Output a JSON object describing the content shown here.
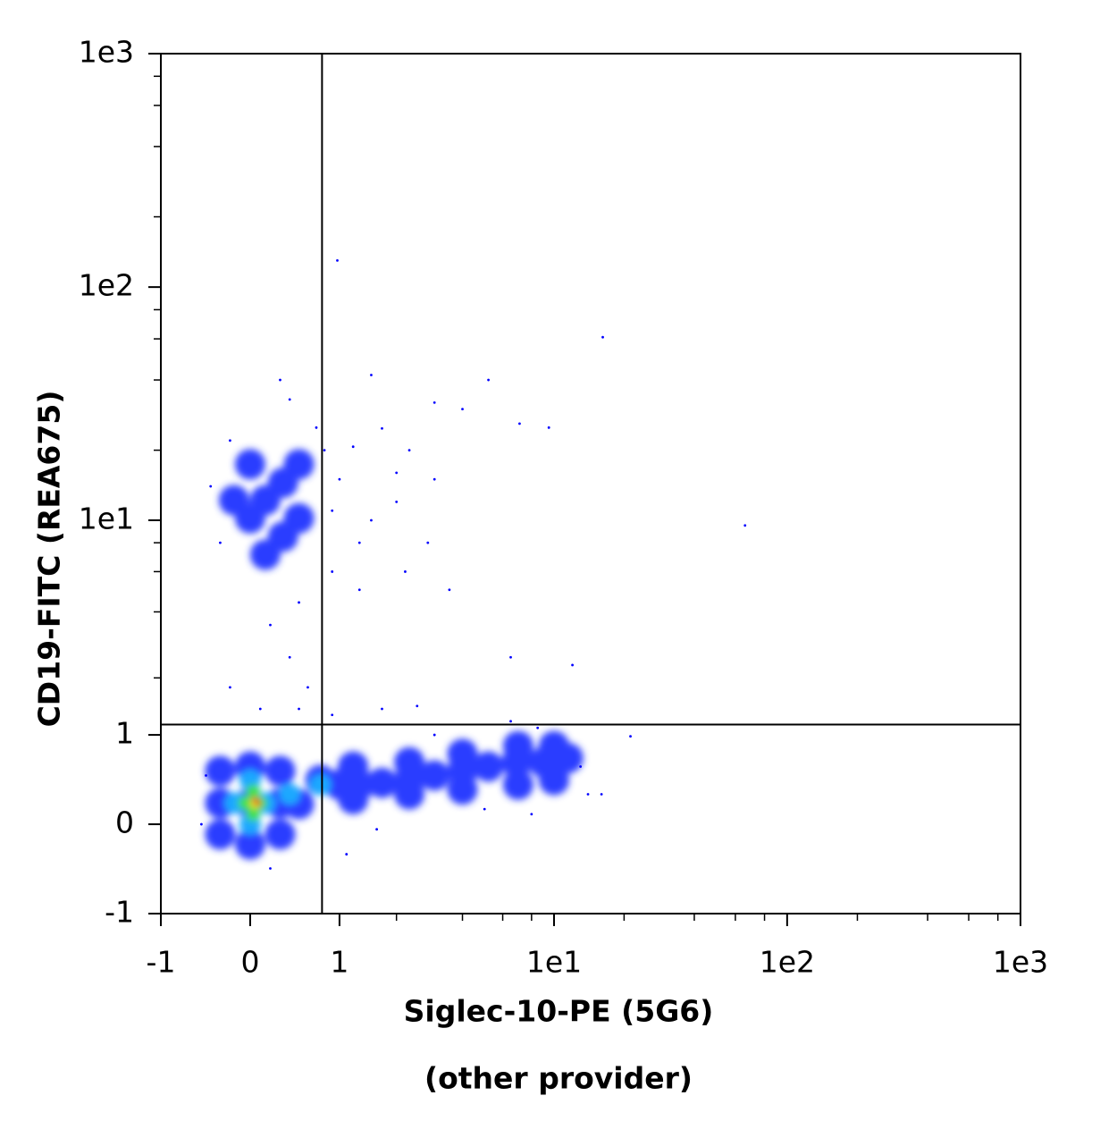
{
  "chart_data": {
    "type": "scatter",
    "scale": "asinh",
    "x_label": "Siglec-10-PE (5G6)",
    "x_sublabel": "(other provider)",
    "y_label": "CD19-FITC (REA675)",
    "xlim": [
      -1,
      1000
    ],
    "ylim": [
      -1,
      1000
    ],
    "xticks": [
      -1,
      0,
      1,
      {
        "value": 10,
        "label": "1e1"
      },
      {
        "value": 100,
        "label": "1e2"
      },
      {
        "value": 1000,
        "label": "1e3"
      }
    ],
    "yticks": [
      -1,
      0,
      1,
      {
        "value": 10,
        "label": "1e1"
      },
      {
        "value": 100,
        "label": "1e2"
      },
      {
        "value": 1000,
        "label": "1e3"
      }
    ],
    "xminorticks": [
      2,
      4,
      6,
      8,
      20,
      40,
      60,
      80,
      200,
      400,
      600,
      800
    ],
    "yminorticks": [
      2,
      4,
      6,
      8,
      20,
      40,
      60,
      80,
      200,
      400,
      600,
      800
    ],
    "gate": {
      "x": 0.77,
      "y": 1.15,
      "color": "#000000"
    },
    "series": [
      {
        "color": "#2a3cff",
        "size": 17,
        "x": [
          -0.3,
          0,
          0.3,
          0,
          0,
          -0.3,
          0.3,
          -0.3,
          0.3,
          0.5,
          0.75,
          1.0,
          1.3,
          1.7,
          2.3,
          3.0,
          4.0,
          5.2,
          6.9,
          9,
          11.5,
          1.2,
          2.3,
          4,
          7,
          10,
          1.2,
          2.3,
          4,
          7,
          10,
          0,
          0.15,
          0.33,
          0.33,
          0,
          0.15,
          0.5,
          -0.16,
          0.5
        ],
        "y": [
          0.21,
          0.21,
          0.21,
          -0.2,
          0.6,
          -0.1,
          -0.1,
          0.55,
          0.55,
          0.2,
          0.45,
          0.4,
          0.4,
          0.42,
          0.45,
          0.5,
          0.55,
          0.6,
          0.65,
          0.65,
          0.7,
          0.25,
          0.3,
          0.35,
          0.4,
          0.45,
          0.6,
          0.65,
          0.75,
          0.85,
          0.85,
          10.2,
          12.2,
          14.5,
          8.5,
          17.4,
          7.1,
          10.2,
          12.2,
          17.4
        ]
      },
      {
        "color": "#1aa8ff",
        "size": 12,
        "x": [
          -0.15,
          0.15,
          0,
          0,
          0.4,
          0.75
        ],
        "y": [
          0.21,
          0.21,
          0.0,
          0.45,
          0.3,
          0.4
        ]
      },
      {
        "color": "#3fe04a",
        "size": 8,
        "x": [
          -0.05,
          0.1,
          0.03,
          0.03
        ],
        "y": [
          0.21,
          0.21,
          0.1,
          0.33
        ]
      },
      {
        "color": "#f4e81a",
        "size": 6,
        "x": [
          0.05
        ],
        "y": [
          0.21
        ]
      },
      {
        "color": "#e8300e",
        "size": 3.5,
        "x": [
          0.08,
          0.05
        ],
        "y": [
          0.21,
          0.24
        ]
      },
      {
        "color": "#0000ff",
        "size": 1.4,
        "x": [
          1.2,
          1.7,
          2.3,
          3.0,
          1.5,
          4,
          5.2,
          7.1,
          9.5,
          3,
          2,
          2.8,
          2.2,
          3.5,
          0.9,
          1.3,
          0.5,
          0.2,
          0.4,
          0.6,
          -0.2,
          0.1,
          0.5,
          0.9,
          1.7,
          2.5,
          6.5,
          12,
          16.2,
          0.97,
          66,
          21.3,
          16,
          -0.4,
          -0.3,
          0.7,
          0.4,
          0.8,
          1.0,
          0.3,
          -0.2,
          1.5,
          2.0,
          0.9,
          1.3,
          -0.45,
          -0.5,
          0.2,
          1.1,
          13,
          14,
          8,
          5,
          6.5,
          8.5,
          3,
          1.6
        ],
        "y": [
          20.7,
          24.8,
          20,
          32,
          42,
          30,
          40,
          26,
          25,
          15,
          12,
          8,
          6,
          5,
          6,
          5,
          4.4,
          3.5,
          2.5,
          1.8,
          1.8,
          1.4,
          1.4,
          1.3,
          1.4,
          1.45,
          2.5,
          2.3,
          61,
          130,
          9.5,
          0.98,
          0.3,
          14,
          8,
          25,
          33,
          20,
          15,
          40,
          22,
          10,
          16,
          11,
          8,
          0.5,
          0.0,
          -0.45,
          -0.3,
          0.6,
          0.3,
          0.1,
          0.15,
          1.2,
          1.1,
          1.0,
          -0.05
        ]
      }
    ]
  }
}
